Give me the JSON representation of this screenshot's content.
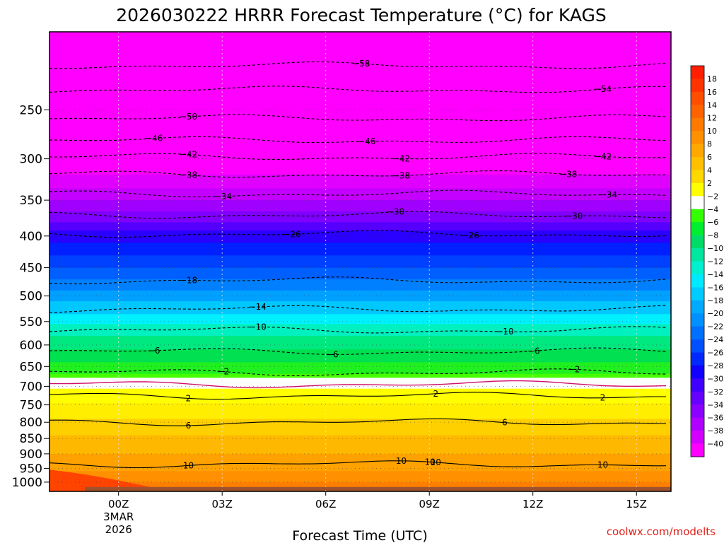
{
  "chart_data": {
    "type": "heatmap",
    "title": "2026030222 HRRR Forecast Temperature (°C) for KAGS",
    "xlabel": "Forecast Time (UTC)",
    "ylabel": "",
    "credit": "coolwx.com/modelts",
    "x_ticks": [
      {
        "label": "00Z",
        "hour": 0,
        "sub": [
          "3MAR",
          "2026"
        ]
      },
      {
        "label": "03Z",
        "hour": 3,
        "sub": []
      },
      {
        "label": "06Z",
        "hour": 6,
        "sub": []
      },
      {
        "label": "09Z",
        "hour": 9,
        "sub": []
      },
      {
        "label": "12Z",
        "hour": 12,
        "sub": []
      },
      {
        "label": "15Z",
        "hour": 15,
        "sub": []
      }
    ],
    "xlim": [
      -2,
      16
    ],
    "y_scale": "log",
    "y_inverted": true,
    "ylim": [
      1035,
      187
    ],
    "y_ticks": [
      250,
      300,
      350,
      400,
      450,
      500,
      550,
      600,
      650,
      700,
      750,
      800,
      850,
      900,
      950,
      1000
    ],
    "colorbar": {
      "levels": [
        18,
        16,
        14,
        12,
        10,
        8,
        6,
        4,
        2,
        -2,
        -4,
        -6,
        -8,
        -10,
        -12,
        -14,
        -16,
        -18,
        -20,
        -22,
        -24,
        -26,
        -28,
        -30,
        -32,
        -34,
        -36,
        -38,
        -40
      ],
      "label_strings": [
        "18",
        "16",
        "14",
        "12",
        "10",
        "8",
        "6",
        "4",
        "2",
        "−2",
        "−4",
        "−6",
        "−8",
        "−10",
        "−12",
        "−14",
        "−16",
        "−18",
        "−20",
        "−22",
        "−24",
        "−26",
        "−28",
        "−30",
        "−32",
        "−34",
        "−36",
        "−38",
        "−40"
      ],
      "colors": [
        "#ff1e00",
        "#ff3300",
        "#ff4d00",
        "#ff6300",
        "#ff7a00",
        "#ff9000",
        "#ffa800",
        "#ffc000",
        "#ffd800",
        "#ffff00",
        "#ffffff",
        "#33ff00",
        "#00ee30",
        "#00dd66",
        "#00e8a0",
        "#00f0d0",
        "#00eaff",
        "#00ccff",
        "#00aaff",
        "#0090ff",
        "#0070ff",
        "#0050ff",
        "#0028ff",
        "#1000ff",
        "#4000ff",
        "#6600ff",
        "#8c00ff",
        "#b000ff",
        "#d400ff",
        "#ff00ff"
      ]
    },
    "contours": [
      {
        "value": -58,
        "label": "−58",
        "pressure": 212,
        "label_hours": [
          6
        ]
      },
      {
        "value": -54,
        "label": "−54",
        "pressure": 232,
        "label_hours": [
          13
        ]
      },
      {
        "value": -50,
        "label": "−50",
        "pressure": 258,
        "label_hours": [
          1
        ]
      },
      {
        "value": -46,
        "label": "−46",
        "pressure": 280,
        "label_hours": [
          0,
          6
        ]
      },
      {
        "value": -42,
        "label": "−42",
        "pressure": 298,
        "label_hours": [
          1,
          7,
          13
        ]
      },
      {
        "value": -38,
        "label": "−38",
        "pressure": 318,
        "label_hours": [
          1,
          7,
          12
        ]
      },
      {
        "value": -34,
        "label": "−34",
        "pressure": 342,
        "label_hours": [
          2,
          13
        ]
      },
      {
        "value": -30,
        "label": "−30",
        "pressure": 370,
        "label_hours": [
          7,
          12
        ]
      },
      {
        "value": -26,
        "label": "−26",
        "pressure": 397,
        "label_hours": [
          4,
          9
        ]
      },
      {
        "value": -18,
        "label": "−18",
        "pressure": 472,
        "label_hours": [
          1
        ]
      },
      {
        "value": -14,
        "label": "−14",
        "pressure": 525,
        "label_hours": [
          3
        ]
      },
      {
        "value": -10,
        "label": "−10",
        "pressure": 568,
        "label_hours": [
          3,
          10
        ]
      },
      {
        "value": -6,
        "label": "−6",
        "pressure": 615,
        "label_hours": [
          0,
          5,
          11
        ]
      },
      {
        "value": -2,
        "label": "−2",
        "pressure": 665,
        "label_hours": [
          2,
          12
        ]
      },
      {
        "value": 0,
        "label": "",
        "pressure": 695,
        "label_hours": []
      },
      {
        "value": 2,
        "label": "2",
        "pressure": 725,
        "label_hours": [
          1,
          8,
          13
        ]
      },
      {
        "value": 6,
        "label": "6",
        "pressure": 800,
        "label_hours": [
          1,
          10
        ]
      },
      {
        "value": 10,
        "label": "10",
        "pressure": 935,
        "label_hours": [
          1,
          7,
          8,
          8,
          13
        ]
      }
    ]
  }
}
